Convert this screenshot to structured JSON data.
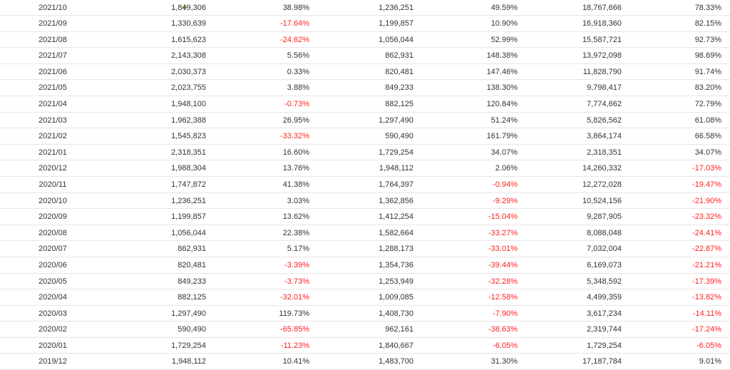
{
  "table": {
    "rows": [
      {
        "month": "2021/10",
        "c1": "1,849,306",
        "c2": "38.98%",
        "c3": "1,236,251",
        "c4": "49.59%",
        "c5": "18,767,666",
        "c6": "78.33%"
      },
      {
        "month": "2021/09",
        "c1": "1,330,639",
        "c2": "-17.64%",
        "c3": "1,199,857",
        "c4": "10.90%",
        "c5": "16,918,360",
        "c6": "82.15%"
      },
      {
        "month": "2021/08",
        "c1": "1,615,623",
        "c2": "-24.62%",
        "c3": "1,056,044",
        "c4": "52.99%",
        "c5": "15,587,721",
        "c6": "92.73%"
      },
      {
        "month": "2021/07",
        "c1": "2,143,308",
        "c2": "5.56%",
        "c3": "862,931",
        "c4": "148.38%",
        "c5": "13,972,098",
        "c6": "98.69%"
      },
      {
        "month": "2021/06",
        "c1": "2,030,373",
        "c2": "0.33%",
        "c3": "820,481",
        "c4": "147.46%",
        "c5": "11,828,790",
        "c6": "91.74%"
      },
      {
        "month": "2021/05",
        "c1": "2,023,755",
        "c2": "3.88%",
        "c3": "849,233",
        "c4": "138.30%",
        "c5": "9,798,417",
        "c6": "83.20%"
      },
      {
        "month": "2021/04",
        "c1": "1,948,100",
        "c2": "-0.73%",
        "c3": "882,125",
        "c4": "120.84%",
        "c5": "7,774,662",
        "c6": "72.79%"
      },
      {
        "month": "2021/03",
        "c1": "1,962,388",
        "c2": "26.95%",
        "c3": "1,297,490",
        "c4": "51.24%",
        "c5": "5,826,562",
        "c6": "61.08%"
      },
      {
        "month": "2021/02",
        "c1": "1,545,823",
        "c2": "-33.32%",
        "c3": "590,490",
        "c4": "161.79%",
        "c5": "3,864,174",
        "c6": "66.58%"
      },
      {
        "month": "2021/01",
        "c1": "2,318,351",
        "c2": "16.60%",
        "c3": "1,729,254",
        "c4": "34.07%",
        "c5": "2,318,351",
        "c6": "34.07%"
      },
      {
        "month": "2020/12",
        "c1": "1,988,304",
        "c2": "13.76%",
        "c3": "1,948,112",
        "c4": "2.06%",
        "c5": "14,260,332",
        "c6": "-17.03%"
      },
      {
        "month": "2020/11",
        "c1": "1,747,872",
        "c2": "41.38%",
        "c3": "1,764,397",
        "c4": "-0.94%",
        "c5": "12,272,028",
        "c6": "-19.47%"
      },
      {
        "month": "2020/10",
        "c1": "1,236,251",
        "c2": "3.03%",
        "c3": "1,362,856",
        "c4": "-9.29%",
        "c5": "10,524,156",
        "c6": "-21.90%"
      },
      {
        "month": "2020/09",
        "c1": "1,199,857",
        "c2": "13.62%",
        "c3": "1,412,254",
        "c4": "-15.04%",
        "c5": "9,287,905",
        "c6": "-23.32%"
      },
      {
        "month": "2020/08",
        "c1": "1,056,044",
        "c2": "22.38%",
        "c3": "1,582,664",
        "c4": "-33.27%",
        "c5": "8,088,048",
        "c6": "-24.41%"
      },
      {
        "month": "2020/07",
        "c1": "862,931",
        "c2": "5.17%",
        "c3": "1,288,173",
        "c4": "-33.01%",
        "c5": "7,032,004",
        "c6": "-22.87%"
      },
      {
        "month": "2020/06",
        "c1": "820,481",
        "c2": "-3.39%",
        "c3": "1,354,736",
        "c4": "-39.44%",
        "c5": "6,169,073",
        "c6": "-21.21%"
      },
      {
        "month": "2020/05",
        "c1": "849,233",
        "c2": "-3.73%",
        "c3": "1,253,949",
        "c4": "-32.28%",
        "c5": "5,348,592",
        "c6": "-17.39%"
      },
      {
        "month": "2020/04",
        "c1": "882,125",
        "c2": "-32.01%",
        "c3": "1,009,085",
        "c4": "-12.58%",
        "c5": "4,499,359",
        "c6": "-13.82%"
      },
      {
        "month": "2020/03",
        "c1": "1,297,490",
        "c2": "119.73%",
        "c3": "1,408,730",
        "c4": "-7.90%",
        "c5": "3,617,234",
        "c6": "-14.11%"
      },
      {
        "month": "2020/02",
        "c1": "590,490",
        "c2": "-65.85%",
        "c3": "962,161",
        "c4": "-38.63%",
        "c5": "2,319,744",
        "c6": "-17.24%"
      },
      {
        "month": "2020/01",
        "c1": "1,729,254",
        "c2": "-11.23%",
        "c3": "1,840,667",
        "c4": "-6.05%",
        "c5": "1,729,254",
        "c6": "-6.05%"
      },
      {
        "month": "2019/12",
        "c1": "1,948,112",
        "c2": "10.41%",
        "c3": "1,483,700",
        "c4": "31.30%",
        "c5": "17,187,784",
        "c6": "9.01%"
      }
    ]
  },
  "colors": {
    "negative": "#ff1f1f",
    "text": "#333333",
    "row_border": "#e6e6e6"
  }
}
